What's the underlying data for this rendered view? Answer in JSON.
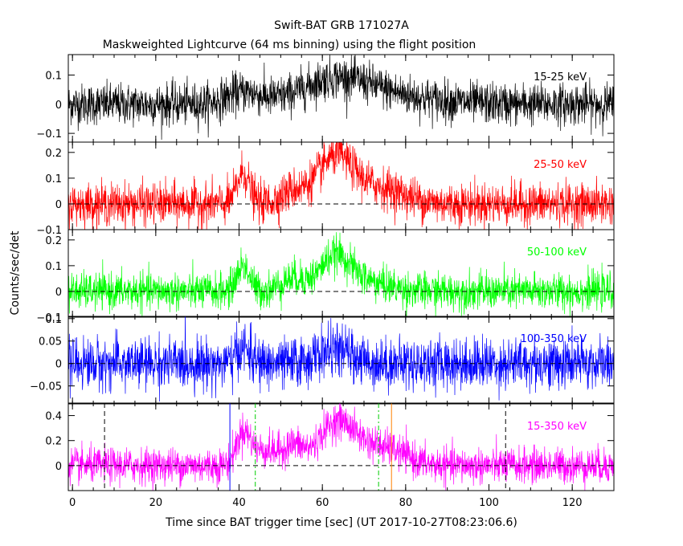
{
  "chart_data": {
    "type": "line",
    "title": "Swift-BAT GRB 171027A",
    "subtitle": "Maskweighted Lightcurve (64 ms binning) using the flight position",
    "xlabel": "Time since BAT trigger time [sec] (UT 2017-10-27T08:23:06.6)",
    "ylabel": "Counts/sec/det",
    "xlim": [
      -1,
      130
    ],
    "xticks": [
      "0",
      "20",
      "40",
      "60",
      "80",
      "100",
      "120"
    ],
    "xtick_values": [
      0,
      20,
      40,
      60,
      80,
      100,
      120
    ],
    "panels": [
      {
        "band": "15-25 keV",
        "color": "#000000",
        "ylim": [
          -0.13,
          0.17
        ],
        "yticks": [
          "0.1",
          "0",
          "−0.1"
        ],
        "ytick_values": [
          0.1,
          0,
          -0.1
        ],
        "noise": 0.035,
        "pulses": [
          [
            41,
            4,
            0.04
          ],
          [
            63,
            8,
            0.07
          ],
          [
            73,
            12,
            0.03
          ]
        ]
      },
      {
        "band": "25-50 keV",
        "color": "#ff0000",
        "ylim": [
          -0.1,
          0.24
        ],
        "yticks": [
          "0.2",
          "0.1",
          "0",
          "−0.1"
        ],
        "ytick_values": [
          0.2,
          0.1,
          0,
          -0.1
        ],
        "noise": 0.04,
        "pulses": [
          [
            41,
            1.5,
            0.12
          ],
          [
            53,
            3,
            0.04
          ],
          [
            63,
            4,
            0.14
          ],
          [
            68,
            8,
            0.06
          ],
          [
            76,
            5,
            0.02
          ]
        ]
      },
      {
        "band": "50-100 keV",
        "color": "#00ff00",
        "ylim": [
          -0.1,
          0.24
        ],
        "yticks": [
          "0.2",
          "0.1",
          "0",
          "−0.1"
        ],
        "ytick_values": [
          0.2,
          0.1,
          0,
          -0.1
        ],
        "noise": 0.035,
        "pulses": [
          [
            41,
            1.5,
            0.1
          ],
          [
            53,
            3,
            0.05
          ],
          [
            63,
            3.5,
            0.12
          ],
          [
            69,
            6,
            0.04
          ]
        ]
      },
      {
        "band": "100-350 keV",
        "color": "#0000ff",
        "ylim": [
          -0.09,
          0.105
        ],
        "yticks": [
          "0.1",
          "0.05",
          "0",
          "−0.05"
        ],
        "ytick_values": [
          0.1,
          0.05,
          0,
          -0.05
        ],
        "noise": 0.028,
        "pulses": [
          [
            41,
            1.5,
            0.035
          ],
          [
            63,
            4,
            0.03
          ]
        ]
      },
      {
        "band": "15-350 keV",
        "color": "#ff00ff",
        "ylim": [
          -0.2,
          0.5
        ],
        "yticks": [
          "0.4",
          "0.2",
          "0"
        ],
        "ytick_values": [
          0.4,
          0.2,
          0
        ],
        "noise": 0.07,
        "pulses": [
          [
            41,
            1.7,
            0.25
          ],
          [
            46,
            3,
            0.12
          ],
          [
            53,
            2.5,
            0.15
          ],
          [
            63,
            4,
            0.28
          ],
          [
            70,
            6,
            0.15
          ],
          [
            78,
            4,
            0.05
          ]
        ],
        "markers": [
          {
            "x": 7.7,
            "color": "#000000",
            "style": "dashed"
          },
          {
            "x": 37.8,
            "color": "#0000ff",
            "style": "solid"
          },
          {
            "x": 43.9,
            "color": "#00cc00",
            "style": "dashdot"
          },
          {
            "x": 73.5,
            "color": "#00cc00",
            "style": "dashdot"
          },
          {
            "x": 76.6,
            "color": "#ff8000",
            "style": "solid"
          },
          {
            "x": 104.0,
            "color": "#000000",
            "style": "dashed"
          }
        ]
      }
    ]
  }
}
